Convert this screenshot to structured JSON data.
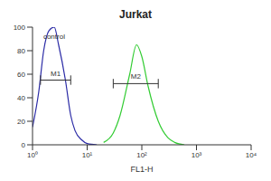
{
  "chart_data": {
    "type": "line",
    "title": "Jurkat",
    "x_label": "FL1-H",
    "log": "x",
    "x": [
      1,
      1.3,
      1.6,
      2,
      2.5,
      3,
      4,
      5,
      6,
      8,
      10,
      15,
      20,
      30,
      40,
      60,
      80,
      100,
      130,
      200,
      300,
      400,
      600
    ],
    "series": [
      {
        "color": "#2b2ba6",
        "values": [
          15,
          45,
          80,
          97,
          100,
          85,
          55,
          25,
          12,
          4,
          1,
          0,
          null,
          null,
          null,
          null,
          null,
          null,
          null,
          null,
          null,
          null,
          null
        ]
      },
      {
        "color": "#33cc33",
        "values": [
          null,
          null,
          null,
          null,
          null,
          null,
          null,
          null,
          null,
          null,
          null,
          null,
          2,
          10,
          25,
          60,
          85,
          75,
          50,
          20,
          6,
          2,
          0
        ]
      }
    ],
    "xlim": [
      1,
      10000
    ],
    "xticks": [
      {
        "value": 1,
        "label": "10⁰"
      },
      {
        "value": 10,
        "label": "10¹"
      },
      {
        "value": 100,
        "label": "10²"
      },
      {
        "value": 1000,
        "label": "10³"
      },
      {
        "value": 10000,
        "label": "10⁴"
      }
    ],
    "ylim": [
      0,
      100
    ],
    "yticks": [
      0,
      20,
      40,
      60,
      80,
      100
    ],
    "annotations": [
      {
        "text": "control",
        "x": 1.3,
        "y": 92
      }
    ],
    "markers": [
      {
        "label": "M1",
        "x": [
          1.4,
          5
        ],
        "y": 55
      },
      {
        "label": "M2",
        "x": [
          30,
          200
        ],
        "y": 52
      }
    ]
  }
}
